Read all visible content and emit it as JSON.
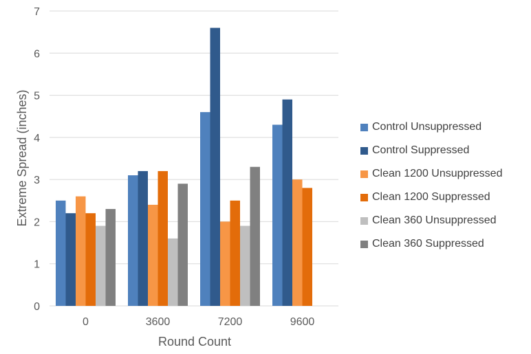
{
  "colors": {
    "axis_text": "#595959",
    "gridline": "#d9d9d9",
    "series": [
      "#4f81bd",
      "#305a8c",
      "#f79646",
      "#e36c0a",
      "#bfbfbf",
      "#808080"
    ]
  },
  "chart_data": {
    "type": "bar",
    "title": "",
    "xlabel": "Round Count",
    "ylabel": "Extreme Spread (inches)",
    "categories": [
      "0",
      "3600",
      "7200",
      "9600"
    ],
    "ylim": [
      0,
      7
    ],
    "yticks": [
      "0",
      "1",
      "2",
      "3",
      "4",
      "5",
      "6",
      "7"
    ],
    "grid": true,
    "legend_position": "right",
    "series": [
      {
        "name": "Control Unsuppressed",
        "values": [
          2.5,
          3.1,
          4.6,
          4.3
        ]
      },
      {
        "name": "Control Suppressed",
        "values": [
          2.2,
          3.2,
          6.6,
          4.9
        ]
      },
      {
        "name": "Clean 1200 Unsuppressed",
        "values": [
          2.6,
          2.4,
          2.0,
          3.0
        ]
      },
      {
        "name": "Clean 1200 Suppressed",
        "values": [
          2.2,
          3.2,
          2.5,
          2.8
        ]
      },
      {
        "name": "Clean 360 Unsuppressed",
        "values": [
          1.9,
          1.6,
          1.9,
          null
        ]
      },
      {
        "name": "Clean 360 Suppressed",
        "values": [
          2.3,
          2.9,
          3.3,
          null
        ]
      }
    ]
  }
}
